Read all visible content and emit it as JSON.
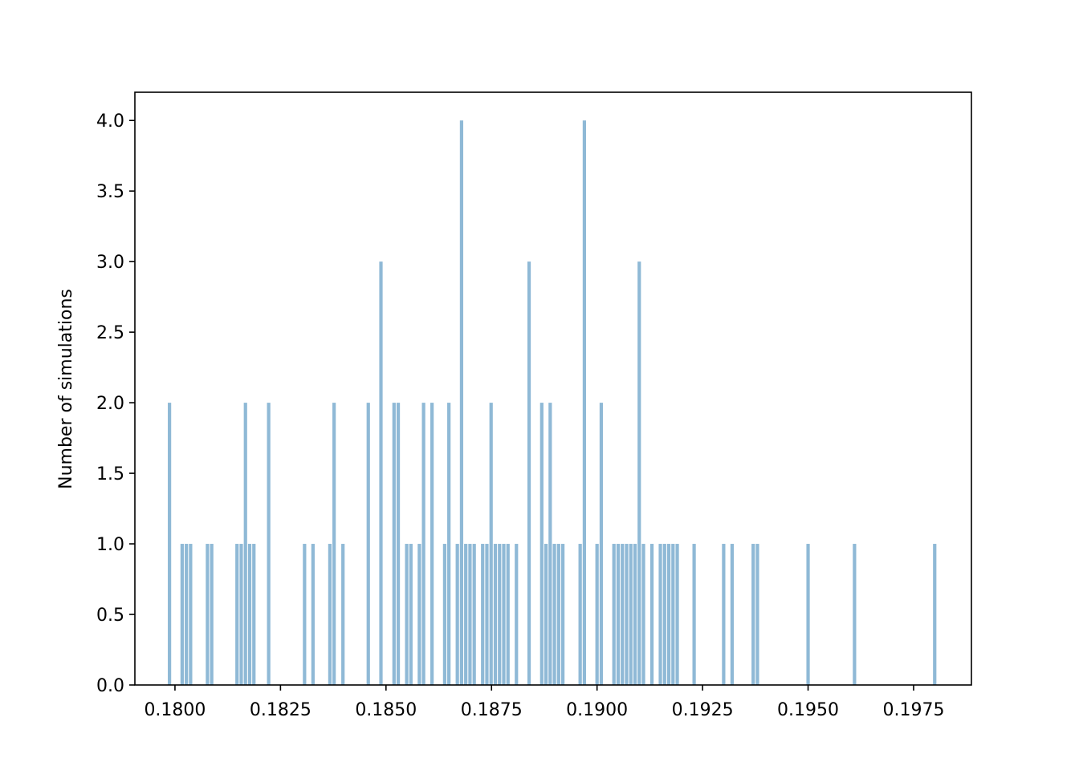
{
  "chart_data": {
    "type": "bar",
    "title": "",
    "xlabel": "",
    "ylabel": "Number of simulations",
    "xlim": [
      0.17905,
      0.19887
    ],
    "ylim": [
      0.0,
      4.2
    ],
    "grid": false,
    "legend": "none",
    "bar_color": "#8fb9d6",
    "bar_width": 8e-05,
    "x_ticks": [
      {
        "value": 0.18,
        "label": "0.1800"
      },
      {
        "value": 0.1825,
        "label": "0.1825"
      },
      {
        "value": 0.185,
        "label": "0.1850"
      },
      {
        "value": 0.1875,
        "label": "0.1875"
      },
      {
        "value": 0.19,
        "label": "0.1900"
      },
      {
        "value": 0.1925,
        "label": "0.1925"
      },
      {
        "value": 0.195,
        "label": "0.1950"
      },
      {
        "value": 0.1975,
        "label": "0.1975"
      }
    ],
    "y_ticks": [
      {
        "value": 0.0,
        "label": "0.0"
      },
      {
        "value": 0.5,
        "label": "0.5"
      },
      {
        "value": 1.0,
        "label": "1.0"
      },
      {
        "value": 1.5,
        "label": "1.5"
      },
      {
        "value": 2.0,
        "label": "2.0"
      },
      {
        "value": 2.5,
        "label": "2.5"
      },
      {
        "value": 3.0,
        "label": "3.0"
      },
      {
        "value": 3.5,
        "label": "3.5"
      },
      {
        "value": 4.0,
        "label": "4.0"
      }
    ],
    "x": [
      0.17987,
      0.18017,
      0.18027,
      0.18037,
      0.18077,
      0.18087,
      0.18147,
      0.18157,
      0.18167,
      0.18177,
      0.18187,
      0.18222,
      0.18307,
      0.18327,
      0.18367,
      0.18377,
      0.18398,
      0.18458,
      0.18488,
      0.18519,
      0.18529,
      0.18549,
      0.18559,
      0.18579,
      0.18589,
      0.18609,
      0.18639,
      0.18649,
      0.18669,
      0.18679,
      0.18689,
      0.18699,
      0.18709,
      0.18729,
      0.18739,
      0.18749,
      0.18759,
      0.18769,
      0.18779,
      0.18789,
      0.18809,
      0.18839,
      0.18869,
      0.18879,
      0.18889,
      0.18899,
      0.18909,
      0.18919,
      0.1896,
      0.1897,
      0.19,
      0.1901,
      0.1904,
      0.1905,
      0.1906,
      0.1907,
      0.1908,
      0.1909,
      0.191,
      0.1911,
      0.1913,
      0.1915,
      0.1916,
      0.1917,
      0.1918,
      0.1919,
      0.1923,
      0.193,
      0.1932,
      0.1937,
      0.1938,
      0.195,
      0.1961,
      0.198
    ],
    "values": [
      2,
      1,
      1,
      1,
      1,
      1,
      1,
      1,
      2,
      1,
      1,
      2,
      1,
      1,
      1,
      2,
      1,
      2,
      3,
      2,
      2,
      1,
      1,
      1,
      2,
      2,
      1,
      2,
      1,
      4,
      1,
      1,
      1,
      1,
      1,
      2,
      1,
      1,
      1,
      1,
      1,
      3,
      2,
      1,
      2,
      1,
      1,
      1,
      1,
      4,
      1,
      2,
      1,
      1,
      1,
      1,
      1,
      1,
      3,
      1,
      1,
      1,
      1,
      1,
      1,
      1,
      1,
      1,
      1,
      1,
      1,
      1,
      1,
      1
    ]
  }
}
